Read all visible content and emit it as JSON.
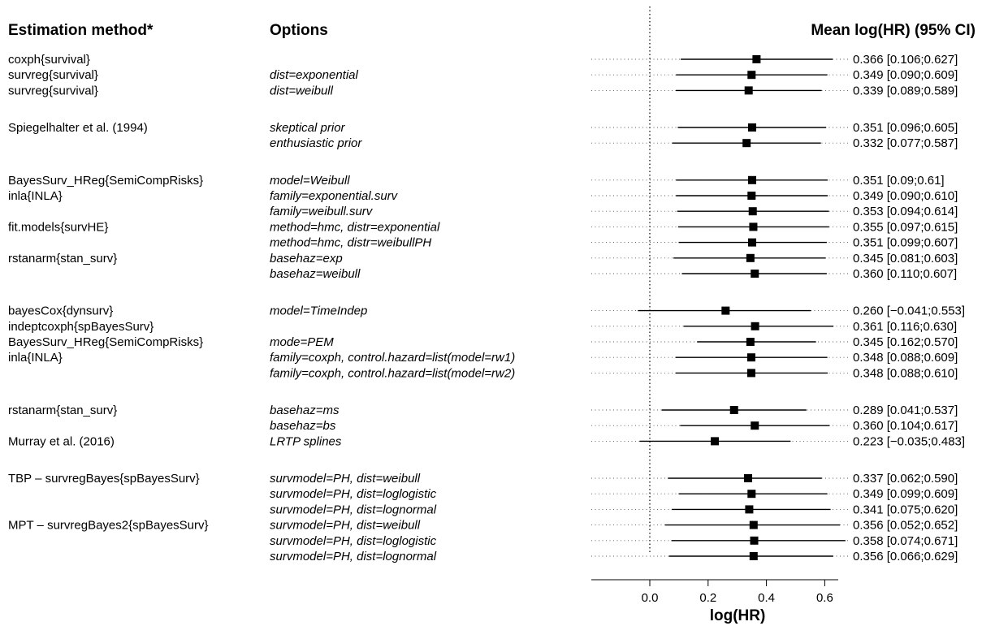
{
  "headers": {
    "method": "Estimation method*",
    "options": "Options",
    "estimate": "Mean log(HR) (95% CI)"
  },
  "rows": [
    {
      "method": "coxph{survival}",
      "option": "",
      "mean": 0.366,
      "lo": 0.106,
      "hi": 0.627,
      "text": "0.366 [0.106;0.627]"
    },
    {
      "method": "survreg{survival}",
      "option": "dist=exponential",
      "mean": 0.349,
      "lo": 0.09,
      "hi": 0.609,
      "text": "0.349 [0.090;0.609]"
    },
    {
      "method": "survreg{survival}",
      "option": "dist=weibull",
      "mean": 0.339,
      "lo": 0.089,
      "hi": 0.589,
      "text": "0.339 [0.089;0.589]"
    },
    {
      "gap": true
    },
    {
      "method": "Spiegelhalter et al. (1994)",
      "option": "skeptical prior",
      "mean": 0.351,
      "lo": 0.096,
      "hi": 0.605,
      "text": "0.351 [0.096;0.605]"
    },
    {
      "method": "",
      "option": "enthusiastic prior",
      "mean": 0.332,
      "lo": 0.077,
      "hi": 0.587,
      "text": "0.332 [0.077;0.587]"
    },
    {
      "gap": true
    },
    {
      "method": "BayesSurv_HReg{SemiCompRisks}",
      "option": "model=Weibull",
      "mean": 0.351,
      "lo": 0.09,
      "hi": 0.61,
      "text": "0.351 [0.09;0.61]"
    },
    {
      "method": "inla{INLA}",
      "option": "family=exponential.surv",
      "mean": 0.349,
      "lo": 0.09,
      "hi": 0.61,
      "text": "0.349 [0.090;0.610]"
    },
    {
      "method": "",
      "option": "family=weibull.surv",
      "mean": 0.353,
      "lo": 0.094,
      "hi": 0.614,
      "text": "0.353 [0.094;0.614]"
    },
    {
      "method": "fit.models{survHE}",
      "option": "method=hmc, distr=exponential",
      "mean": 0.355,
      "lo": 0.097,
      "hi": 0.615,
      "text": "0.355 [0.097;0.615]"
    },
    {
      "method": "",
      "option": "method=hmc, distr=weibullPH",
      "mean": 0.351,
      "lo": 0.099,
      "hi": 0.607,
      "text": "0.351 [0.099;0.607]"
    },
    {
      "method": "rstanarm{stan_surv}",
      "option": "basehaz=exp",
      "mean": 0.345,
      "lo": 0.081,
      "hi": 0.603,
      "text": "0.345 [0.081;0.603]"
    },
    {
      "method": "",
      "option": "basehaz=weibull",
      "mean": 0.36,
      "lo": 0.11,
      "hi": 0.607,
      "text": "0.360 [0.110;0.607]"
    },
    {
      "gap": true
    },
    {
      "method": "bayesCox{dynsurv}",
      "option": "model=TimeIndep",
      "mean": 0.26,
      "lo": -0.041,
      "hi": 0.553,
      "text": "0.260 [−0.041;0.553]"
    },
    {
      "method": "indeptcoxph{spBayesSurv}",
      "option": "",
      "mean": 0.361,
      "lo": 0.116,
      "hi": 0.63,
      "text": "0.361 [0.116;0.630]"
    },
    {
      "method": "BayesSurv_HReg{SemiCompRisks}",
      "option": "mode=PEM",
      "mean": 0.345,
      "lo": 0.162,
      "hi": 0.57,
      "text": "0.345 [0.162;0.570]"
    },
    {
      "method": "inla{INLA}",
      "option": "family=coxph, control.hazard=list(model=rw1)",
      "mean": 0.348,
      "lo": 0.088,
      "hi": 0.609,
      "text": "0.348 [0.088;0.609]"
    },
    {
      "method": "",
      "option": "family=coxph, control.hazard=list(model=rw2)",
      "mean": 0.348,
      "lo": 0.088,
      "hi": 0.61,
      "text": "0.348 [0.088;0.610]"
    },
    {
      "gap": true
    },
    {
      "method": "rstanarm{stan_surv}",
      "option": "basehaz=ms",
      "mean": 0.289,
      "lo": 0.041,
      "hi": 0.537,
      "text": "0.289 [0.041;0.537]"
    },
    {
      "method": "",
      "option": "basehaz=bs",
      "mean": 0.36,
      "lo": 0.104,
      "hi": 0.617,
      "text": "0.360 [0.104;0.617]"
    },
    {
      "method": "Murray et al. (2016)",
      "option": "LRTP splines",
      "mean": 0.223,
      "lo": -0.035,
      "hi": 0.483,
      "text": "0.223 [−0.035;0.483]"
    },
    {
      "gap": true
    },
    {
      "method": "TBP – survregBayes{spBayesSurv}",
      "option": "survmodel=PH, dist=weibull",
      "mean": 0.337,
      "lo": 0.062,
      "hi": 0.59,
      "text": "0.337 [0.062;0.590]"
    },
    {
      "method": "",
      "option": "survmodel=PH, dist=loglogistic",
      "mean": 0.349,
      "lo": 0.099,
      "hi": 0.609,
      "text": "0.349 [0.099;0.609]"
    },
    {
      "method": "",
      "option": "survmodel=PH, dist=lognormal",
      "mean": 0.341,
      "lo": 0.075,
      "hi": 0.62,
      "text": "0.341 [0.075;0.620]"
    },
    {
      "method": "MPT – survregBayes2{spBayesSurv}",
      "option": "survmodel=PH, dist=weibull",
      "mean": 0.356,
      "lo": 0.052,
      "hi": 0.652,
      "text": "0.356 [0.052;0.652]"
    },
    {
      "method": "",
      "option": "survmodel=PH, dist=loglogistic",
      "mean": 0.358,
      "lo": 0.074,
      "hi": 0.671,
      "text": "0.358 [0.074;0.671]"
    },
    {
      "method": "",
      "option": "survmodel=PH, dist=lognormal",
      "mean": 0.356,
      "lo": 0.066,
      "hi": 0.629,
      "text": "0.356 [0.066;0.629]"
    }
  ],
  "chart_data": {
    "type": "forest",
    "xlabel": "log(HR)",
    "xlim": [
      -0.2,
      0.65
    ],
    "xticks": [
      0.0,
      0.2,
      0.4,
      0.6
    ],
    "xtick_labels": [
      "0.0",
      "0.2",
      "0.4",
      "0.6"
    ],
    "reference_line": 0,
    "grid": false,
    "values": [
      {
        "mean": 0.366,
        "lo": 0.106,
        "hi": 0.627
      },
      {
        "mean": 0.349,
        "lo": 0.09,
        "hi": 0.609
      },
      {
        "mean": 0.339,
        "lo": 0.089,
        "hi": 0.589
      },
      {
        "mean": 0.351,
        "lo": 0.096,
        "hi": 0.605
      },
      {
        "mean": 0.332,
        "lo": 0.077,
        "hi": 0.587
      },
      {
        "mean": 0.351,
        "lo": 0.09,
        "hi": 0.61
      },
      {
        "mean": 0.349,
        "lo": 0.09,
        "hi": 0.61
      },
      {
        "mean": 0.353,
        "lo": 0.094,
        "hi": 0.614
      },
      {
        "mean": 0.355,
        "lo": 0.097,
        "hi": 0.615
      },
      {
        "mean": 0.351,
        "lo": 0.099,
        "hi": 0.607
      },
      {
        "mean": 0.345,
        "lo": 0.081,
        "hi": 0.603
      },
      {
        "mean": 0.36,
        "lo": 0.11,
        "hi": 0.607
      },
      {
        "mean": 0.26,
        "lo": -0.041,
        "hi": 0.553
      },
      {
        "mean": 0.361,
        "lo": 0.116,
        "hi": 0.63
      },
      {
        "mean": 0.345,
        "lo": 0.162,
        "hi": 0.57
      },
      {
        "mean": 0.348,
        "lo": 0.088,
        "hi": 0.609
      },
      {
        "mean": 0.348,
        "lo": 0.088,
        "hi": 0.61
      },
      {
        "mean": 0.289,
        "lo": 0.041,
        "hi": 0.537
      },
      {
        "mean": 0.36,
        "lo": 0.104,
        "hi": 0.617
      },
      {
        "mean": 0.223,
        "lo": -0.035,
        "hi": 0.483
      },
      {
        "mean": 0.337,
        "lo": 0.062,
        "hi": 0.59
      },
      {
        "mean": 0.349,
        "lo": 0.099,
        "hi": 0.609
      },
      {
        "mean": 0.341,
        "lo": 0.075,
        "hi": 0.62
      },
      {
        "mean": 0.356,
        "lo": 0.052,
        "hi": 0.652
      },
      {
        "mean": 0.358,
        "lo": 0.074,
        "hi": 0.671
      },
      {
        "mean": 0.356,
        "lo": 0.066,
        "hi": 0.629
      }
    ]
  }
}
